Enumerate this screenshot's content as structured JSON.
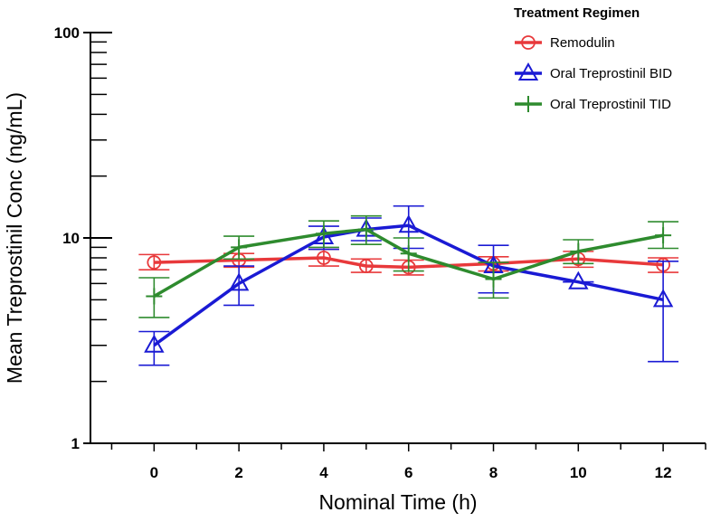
{
  "chart_data": {
    "type": "line",
    "title": "",
    "xlabel": "Nominal Time (h)",
    "ylabel": "Mean Treprostinil Conc (ng/mL)",
    "yscale": "log",
    "xlim": [
      -1.5,
      13
    ],
    "ylim": [
      1,
      100
    ],
    "x_ticks": [
      0,
      2,
      4,
      6,
      8,
      10,
      12
    ],
    "y_tick_labels": [
      {
        "value": 1,
        "label": "1"
      },
      {
        "value": 10,
        "label": "10"
      },
      {
        "value": 100,
        "label": "100"
      }
    ],
    "legend_title": "Treatment Regimen",
    "legend_position": "top-right",
    "series": [
      {
        "name": "Remodulin",
        "color": "#e8393b",
        "marker": "circle",
        "points": [
          {
            "x": 0,
            "y": 7.6,
            "lo": 7.0,
            "hi": 8.3
          },
          {
            "x": 2,
            "y": 7.8,
            "lo": 7.2,
            "hi": 8.4
          },
          {
            "x": 4,
            "y": 8.0,
            "lo": 7.3,
            "hi": 8.8
          },
          {
            "x": 5,
            "y": 7.3,
            "lo": 6.8,
            "hi": 7.9
          },
          {
            "x": 6,
            "y": 7.2,
            "lo": 6.6,
            "hi": 7.8
          },
          {
            "x": 8,
            "y": 7.5,
            "lo": 6.9,
            "hi": 8.1
          },
          {
            "x": 10,
            "y": 7.9,
            "lo": 7.2,
            "hi": 8.6
          },
          {
            "x": 12,
            "y": 7.4,
            "lo": 6.8,
            "hi": 8.0
          }
        ]
      },
      {
        "name": "Oral Treprostinil BID",
        "color": "#1a1ad4",
        "marker": "triangle",
        "points": [
          {
            "x": 0,
            "y": 3.0,
            "lo": 2.4,
            "hi": 3.5
          },
          {
            "x": 2,
            "y": 6.0,
            "lo": 4.7,
            "hi": 7.3
          },
          {
            "x": 4,
            "y": 10.1,
            "lo": 8.8,
            "hi": 11.4
          },
          {
            "x": 5,
            "y": 11.0,
            "lo": 9.7,
            "hi": 12.5
          },
          {
            "x": 6,
            "y": 11.5,
            "lo": 8.9,
            "hi": 14.3
          },
          {
            "x": 8,
            "y": 7.3,
            "lo": 5.4,
            "hi": 9.2
          },
          {
            "x": 10,
            "y": 6.1,
            "lo": 6.1,
            "hi": 6.1
          },
          {
            "x": 12,
            "y": 5.0,
            "lo": 2.5,
            "hi": 7.7
          }
        ]
      },
      {
        "name": "Oral Treprostinil TID",
        "color": "#2e8b2e",
        "marker": "plus",
        "points": [
          {
            "x": 0,
            "y": 5.2,
            "lo": 4.1,
            "hi": 6.4
          },
          {
            "x": 2,
            "y": 9.0,
            "lo": 7.9,
            "hi": 10.2
          },
          {
            "x": 4,
            "y": 10.5,
            "lo": 9.0,
            "hi": 12.1
          },
          {
            "x": 5,
            "y": 11.0,
            "lo": 9.3,
            "hi": 12.8
          },
          {
            "x": 6,
            "y": 8.4,
            "lo": 6.9,
            "hi": 10.0
          },
          {
            "x": 8,
            "y": 6.3,
            "lo": 5.1,
            "hi": 7.6
          },
          {
            "x": 10,
            "y": 8.6,
            "lo": 7.5,
            "hi": 9.8
          },
          {
            "x": 12,
            "y": 10.3,
            "lo": 8.9,
            "hi": 12.0
          }
        ]
      }
    ]
  }
}
